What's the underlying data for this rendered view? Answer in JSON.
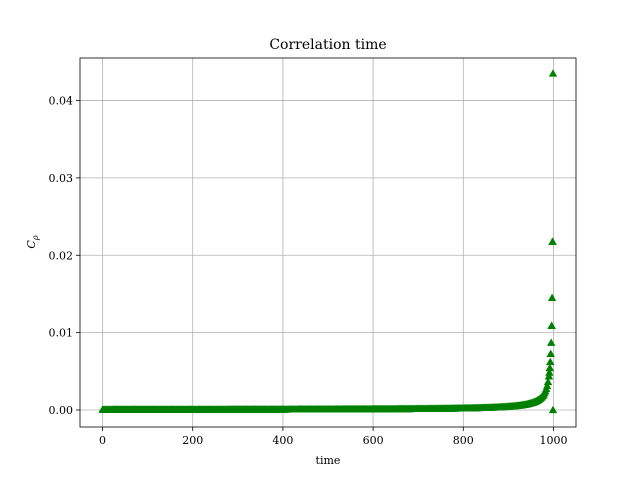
{
  "chart_data": {
    "type": "scatter",
    "title": "Correlation time",
    "xlabel": "time",
    "ylabel": "C_ρ",
    "ylabel_main": "C",
    "ylabel_sub": "ρ",
    "xlim": [
      -50,
      1050
    ],
    "ylim": [
      -0.0022,
      0.0455
    ],
    "xticks": [
      0,
      200,
      400,
      600,
      800,
      1000
    ],
    "xtick_labels": [
      "0",
      "200",
      "400",
      "600",
      "800",
      "1000"
    ],
    "yticks": [
      0.0,
      0.01,
      0.02,
      0.03,
      0.04
    ],
    "ytick_labels": [
      "0.00",
      "0.01",
      "0.02",
      "0.03",
      "0.04"
    ],
    "grid": true,
    "marker": "triangle-up",
    "color": "#008000",
    "series_model": "C = a / (1000 - time), time = 0 ... 999",
    "series_coefficient": 0.0435,
    "series_x_range": [
      0,
      999
    ],
    "series_step": 2,
    "series_extra_points": [
      {
        "x": 999,
        "y": 0.0
      }
    ]
  }
}
